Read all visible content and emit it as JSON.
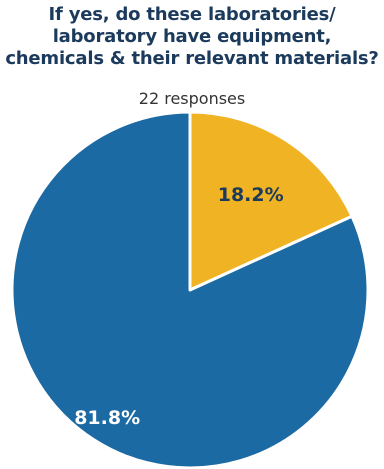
{
  "chart_data": {
    "type": "pie",
    "title_lines": [
      "If yes, do these laboratories/",
      "laboratory have equipment,",
      "chemicals & their relevant materials?"
    ],
    "subtitle": "22 responses",
    "slices": [
      {
        "value": 18.2,
        "label": "18.2%",
        "color": "#f0b323",
        "label_color": "#1b3a5c"
      },
      {
        "value": 81.8,
        "label": "81.8%",
        "color": "#1c6aa3",
        "label_color": "#ffffff"
      }
    ],
    "start_angle_deg": 0,
    "direction": "clockwise",
    "slice_border_color": "#ffffff"
  }
}
